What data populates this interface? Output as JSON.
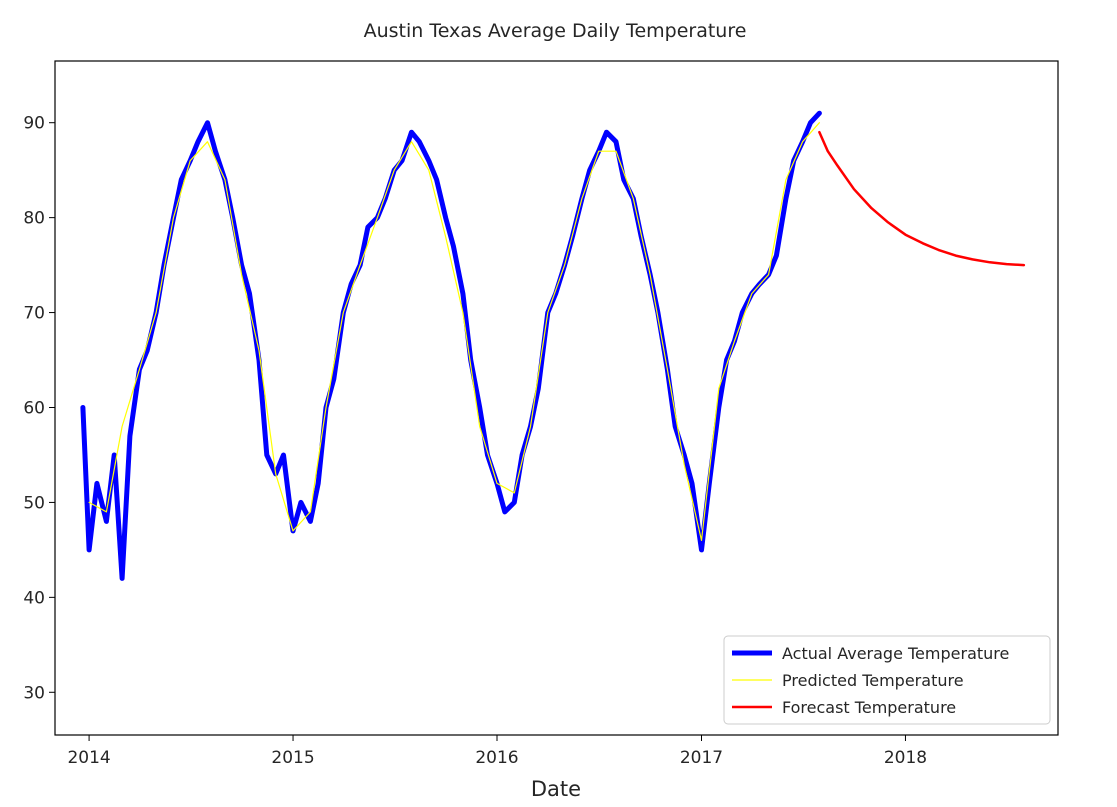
{
  "chart_data": {
    "type": "line",
    "title": "Austin Texas Average Daily Temperature",
    "xlabel": "Date",
    "ylabel": "",
    "xlim": [
      "2013-11-01",
      "2018-10-01"
    ],
    "ylim": [
      25.5,
      96.5
    ],
    "x_ticks": [
      "2014",
      "2015",
      "2016",
      "2017",
      "2018"
    ],
    "x_tick_dates": [
      "2014-01-01",
      "2015-01-01",
      "2016-01-01",
      "2017-01-01",
      "2018-01-01"
    ],
    "y_ticks": [
      30,
      40,
      50,
      60,
      70,
      80,
      90
    ],
    "grid": false,
    "legend_position": "lower right",
    "series": [
      {
        "name": "Actual Average Temperature",
        "color": "#0000ff",
        "style": "thick-line",
        "x": [
          "2013-12-21",
          "2014-01-01",
          "2014-01-15",
          "2014-02-01",
          "2014-02-15",
          "2014-03-01",
          "2014-03-15",
          "2014-04-01",
          "2014-04-15",
          "2014-05-01",
          "2014-05-15",
          "2014-06-01",
          "2014-06-15",
          "2014-07-01",
          "2014-07-15",
          "2014-08-01",
          "2014-08-15",
          "2014-09-01",
          "2014-09-15",
          "2014-10-01",
          "2014-10-15",
          "2014-11-01",
          "2014-11-15",
          "2014-12-01",
          "2014-12-15",
          "2015-01-01",
          "2015-01-15",
          "2015-02-01",
          "2015-02-15",
          "2015-03-01",
          "2015-03-15",
          "2015-04-01",
          "2015-04-15",
          "2015-05-01",
          "2015-05-15",
          "2015-06-01",
          "2015-06-15",
          "2015-07-01",
          "2015-07-15",
          "2015-08-01",
          "2015-08-15",
          "2015-09-01",
          "2015-09-15",
          "2015-10-01",
          "2015-10-15",
          "2015-11-01",
          "2015-11-15",
          "2015-12-01",
          "2015-12-15",
          "2016-01-01",
          "2016-01-15",
          "2016-02-01",
          "2016-02-15",
          "2016-03-01",
          "2016-03-15",
          "2016-04-01",
          "2016-04-15",
          "2016-05-01",
          "2016-05-15",
          "2016-06-01",
          "2016-06-15",
          "2016-07-01",
          "2016-07-15",
          "2016-08-01",
          "2016-08-15",
          "2016-09-01",
          "2016-09-15",
          "2016-10-01",
          "2016-10-15",
          "2016-11-01",
          "2016-11-15",
          "2016-12-01",
          "2016-12-15",
          "2017-01-01",
          "2017-01-15",
          "2017-02-01",
          "2017-02-15",
          "2017-03-01",
          "2017-03-15",
          "2017-04-01",
          "2017-04-15",
          "2017-05-01",
          "2017-05-15",
          "2017-06-01",
          "2017-06-15",
          "2017-07-01",
          "2017-07-15",
          "2017-07-31"
        ],
        "values": [
          60,
          45,
          52,
          48,
          55,
          42,
          57,
          64,
          66,
          70,
          75,
          80,
          84,
          86,
          88,
          90,
          87,
          84,
          80,
          75,
          72,
          65,
          55,
          53,
          55,
          47,
          50,
          48,
          52,
          60,
          63,
          70,
          73,
          75,
          79,
          80,
          82,
          85,
          86,
          89,
          88,
          86,
          84,
          80,
          77,
          72,
          65,
          60,
          55,
          52,
          49,
          50,
          55,
          58,
          62,
          70,
          72,
          75,
          78,
          82,
          85,
          87,
          89,
          88,
          84,
          82,
          78,
          74,
          70,
          64,
          58,
          55,
          52,
          45,
          52,
          60,
          65,
          67,
          70,
          72,
          73,
          74,
          76,
          82,
          86,
          88,
          90,
          91
        ]
      },
      {
        "name": "Predicted Temperature",
        "color": "#ffff00",
        "style": "thin-line",
        "x": [
          "2014-01-01",
          "2014-02-01",
          "2014-03-01",
          "2014-04-01",
          "2014-05-01",
          "2014-06-01",
          "2014-07-01",
          "2014-08-01",
          "2014-09-01",
          "2014-10-01",
          "2014-11-01",
          "2014-12-01",
          "2015-01-01",
          "2015-02-01",
          "2015-03-01",
          "2015-04-01",
          "2015-05-01",
          "2015-06-01",
          "2015-07-01",
          "2015-08-01",
          "2015-09-01",
          "2015-10-01",
          "2015-11-01",
          "2015-12-01",
          "2016-01-01",
          "2016-02-01",
          "2016-03-01",
          "2016-04-01",
          "2016-05-01",
          "2016-06-01",
          "2016-07-01",
          "2016-08-01",
          "2016-09-01",
          "2016-10-01",
          "2016-11-01",
          "2016-12-01",
          "2017-01-01",
          "2017-02-01",
          "2017-03-01",
          "2017-04-01",
          "2017-05-01",
          "2017-06-01",
          "2017-07-01",
          "2017-07-31"
        ],
        "values": [
          50,
          49,
          58,
          64,
          70,
          80,
          86,
          88,
          84,
          74,
          66,
          53,
          47,
          49,
          60,
          70,
          75,
          80,
          85,
          88,
          85,
          78,
          70,
          58,
          52,
          51,
          58,
          70,
          75,
          82,
          87,
          87,
          82,
          74,
          64,
          54,
          46,
          62,
          67,
          72,
          74,
          84,
          88,
          90
        ]
      },
      {
        "name": "Forecast Temperature",
        "color": "#ff0000",
        "style": "medium-line",
        "x": [
          "2017-07-31",
          "2017-08-15",
          "2017-09-01",
          "2017-10-01",
          "2017-11-01",
          "2017-12-01",
          "2018-01-01",
          "2018-02-01",
          "2018-03-01",
          "2018-04-01",
          "2018-05-01",
          "2018-06-01",
          "2018-07-01",
          "2018-08-01"
        ],
        "values": [
          89,
          87,
          85.5,
          83,
          81,
          79.5,
          78.2,
          77.3,
          76.6,
          76,
          75.6,
          75.3,
          75.1,
          75
        ]
      }
    ]
  }
}
